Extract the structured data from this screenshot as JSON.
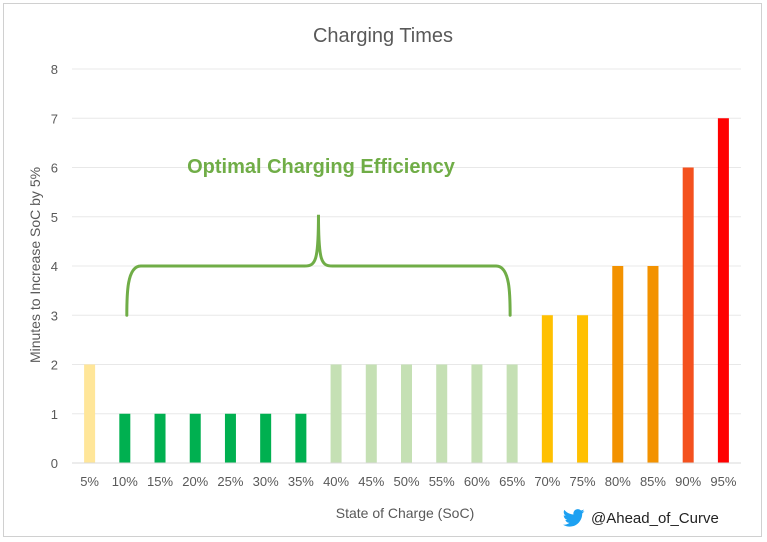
{
  "chart_data": {
    "type": "bar",
    "title": "Charging Times",
    "xlabel": "State of Charge (SoC)",
    "ylabel": "Minutes to Increase SoC by 5%",
    "ylim": [
      0,
      8
    ],
    "yticks": [
      "0",
      "1",
      "2",
      "3",
      "4",
      "5",
      "6",
      "7",
      "8"
    ],
    "grid": true,
    "categories": [
      "5%",
      "10%",
      "15%",
      "20%",
      "25%",
      "30%",
      "35%",
      "40%",
      "45%",
      "50%",
      "55%",
      "60%",
      "65%",
      "70%",
      "75%",
      "80%",
      "85%",
      "90%",
      "95%"
    ],
    "values": [
      2,
      1,
      1,
      1,
      1,
      1,
      1,
      2,
      2,
      2,
      2,
      2,
      2,
      3,
      3,
      4,
      4,
      6,
      7
    ],
    "colors": [
      "#ffe699",
      "#00b050",
      "#00b050",
      "#00b050",
      "#00b050",
      "#00b050",
      "#00b050",
      "#c5e0b4",
      "#c5e0b4",
      "#c5e0b4",
      "#c5e0b4",
      "#c5e0b4",
      "#c5e0b4",
      "#ffc000",
      "#ffc000",
      "#f39200",
      "#f39200",
      "#f4511e",
      "#ff0000"
    ],
    "annotation": {
      "text": "Optimal Charging Efficiency",
      "color": "#70ad47",
      "brace_from": "10%",
      "brace_to": "65%"
    }
  },
  "credit": {
    "icon": "twitter-bird-icon",
    "handle": "@Ahead_of_Curve",
    "icon_color": "#1da1f2"
  }
}
